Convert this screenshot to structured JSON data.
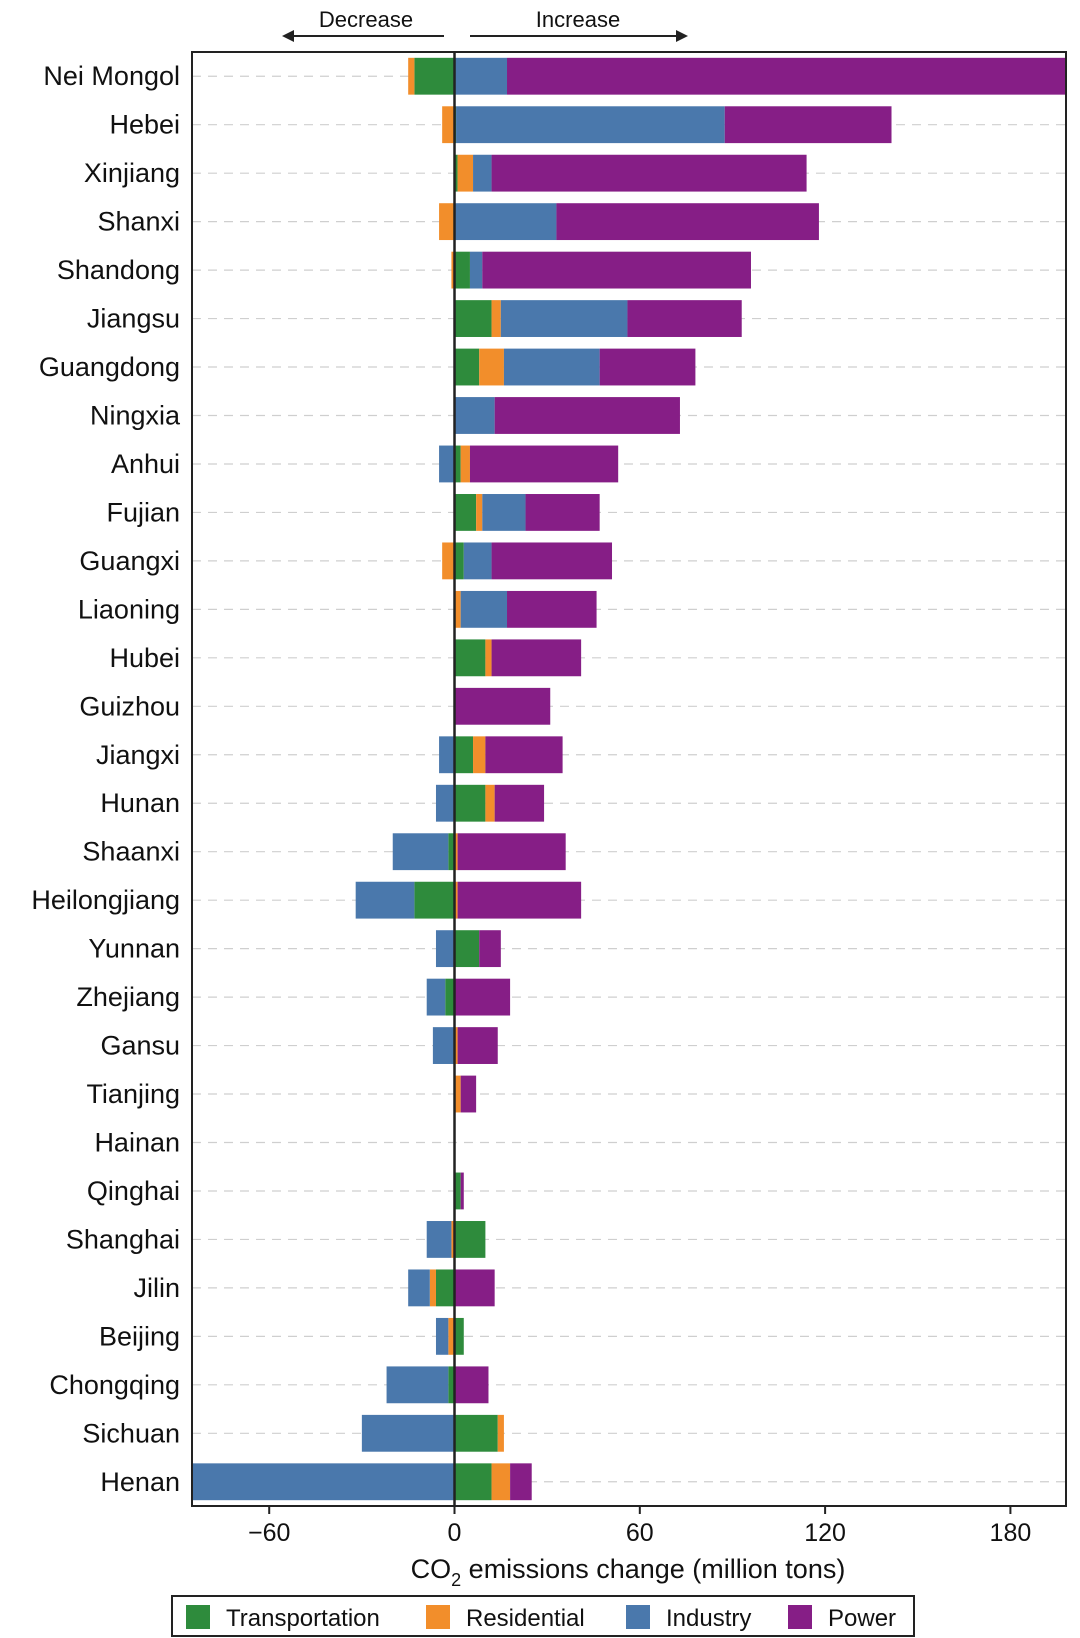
{
  "chart_data": {
    "type": "bar",
    "orientation": "horizontal",
    "stacked": true,
    "xlabel_prefix": "CO",
    "xlabel_subscript": "2",
    "xlabel_suffix": " emissions change (million tons)",
    "xlim": [
      -85,
      198
    ],
    "xticks": [
      -60,
      0,
      60,
      120,
      180
    ],
    "direction_labels": {
      "decrease": "Decrease",
      "increase": "Increase"
    },
    "grid": "horizontal dashed",
    "legend_position": "bottom",
    "categories": [
      "Nei Mongol",
      "Hebei",
      "Xinjiang",
      "Shanxi",
      "Shandong",
      "Jiangsu",
      "Guangdong",
      "Ningxia",
      "Anhui",
      "Fujian",
      "Guangxi",
      "Liaoning",
      "Hubei",
      "Guizhou",
      "Jiangxi",
      "Hunan",
      "Shaanxi",
      "Heilongjiang",
      "Yunnan",
      "Zhejiang",
      "Gansu",
      "Tianjing",
      "Hainan",
      "Qinghai",
      "Shanghai",
      "Jilin",
      "Beijing",
      "Chongqing",
      "Sichuan",
      "Henan"
    ],
    "series": [
      {
        "name": "Transportation",
        "color": "#2e8b3c",
        "values": [
          -13,
          0.5,
          1,
          0,
          5,
          12,
          8,
          0,
          2,
          7,
          3,
          0,
          10,
          0,
          6,
          10,
          -2,
          -13,
          8,
          -3,
          0,
          0,
          0,
          2,
          10,
          -6,
          3,
          -2,
          14,
          12
        ]
      },
      {
        "name": "Residential",
        "color": "#f28e2b",
        "values": [
          -2,
          -4,
          5,
          -5,
          -1,
          3,
          8,
          0,
          3,
          2,
          -4,
          2,
          2,
          0,
          4,
          3,
          1,
          1,
          0,
          0,
          1,
          2,
          0,
          0,
          -1,
          -2,
          -2,
          0,
          2,
          6
        ]
      },
      {
        "name": "Industry",
        "color": "#4a78ac",
        "values": [
          17,
          87,
          6,
          33,
          4,
          41,
          31,
          13,
          -5,
          14,
          9,
          15,
          0,
          0,
          -5,
          -6,
          -18,
          -19,
          -6,
          -6,
          -7,
          0,
          0,
          0,
          -8,
          -7,
          -4,
          -20,
          -30,
          -86
        ]
      },
      {
        "name": "Power",
        "color": "#861e86",
        "values": [
          181,
          54,
          102,
          85,
          87,
          37,
          31,
          60,
          48,
          24,
          39,
          29,
          29,
          31,
          25,
          16,
          35,
          40,
          7,
          18,
          13,
          5,
          0,
          1,
          0,
          13,
          0,
          11,
          0,
          7
        ]
      }
    ]
  }
}
